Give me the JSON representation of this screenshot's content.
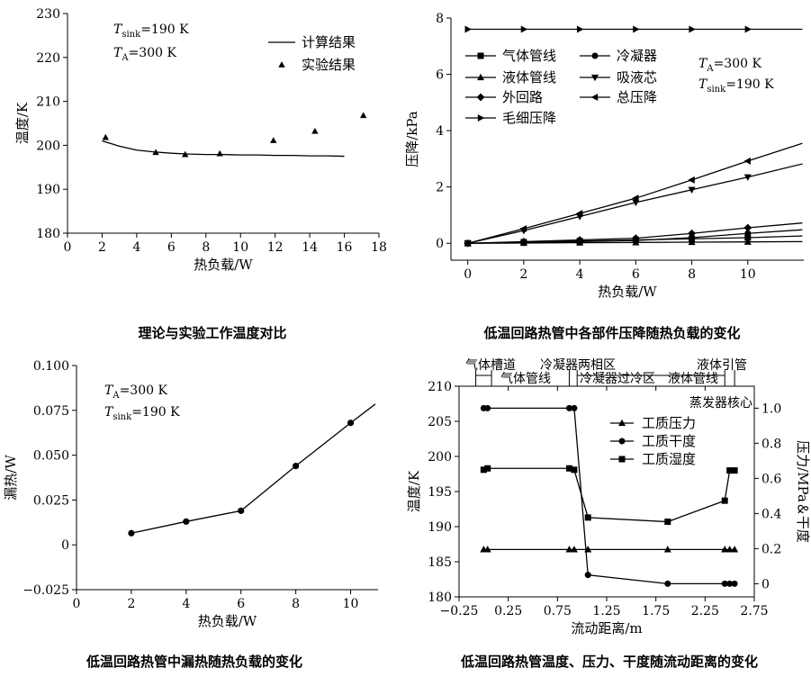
{
  "chart_data": [
    {
      "type": "scatter",
      "id": "c1",
      "caption": "理论与实验工作温度对比",
      "xlabel": "热负载/W",
      "ylabel": "温度/K",
      "xlim": [
        0,
        18
      ],
      "ylim": [
        180,
        230
      ],
      "xticks": [
        0,
        2,
        4,
        6,
        8,
        10,
        12,
        14,
        16,
        18
      ],
      "yticks": [
        180,
        190,
        200,
        210,
        220,
        230
      ],
      "annotations": [
        {
          "label": "T",
          "sub": "sink",
          "value": "=190 K"
        },
        {
          "label": "T",
          "sub": "A",
          "value": "=300 K"
        }
      ],
      "legend_position": "top-right",
      "series": [
        {
          "name": "计算结果",
          "kind": "line",
          "x": [
            2,
            3,
            4,
            5,
            6,
            7,
            8,
            9,
            10,
            11,
            12,
            13,
            14,
            15,
            16
          ],
          "y": [
            201.0,
            199.8,
            198.9,
            198.5,
            198.2,
            198.0,
            197.9,
            197.9,
            197.8,
            197.8,
            197.7,
            197.7,
            197.6,
            197.6,
            197.5
          ]
        },
        {
          "name": "实验结果",
          "kind": "triangle",
          "x": [
            2.2,
            5.1,
            6.8,
            8.8,
            11.9,
            14.3,
            17.1
          ],
          "y": [
            201.8,
            198.4,
            197.9,
            198.1,
            201.1,
            203.2,
            206.8
          ]
        }
      ]
    },
    {
      "type": "line",
      "id": "c2",
      "caption": "低温回路热管中各部件压降随热负载的变化",
      "xlabel": "热负载/W",
      "ylabel": "压降/kPa",
      "xlim": [
        -0.6,
        12
      ],
      "ylim": [
        -0.6,
        8
      ],
      "xticks": [
        0,
        2,
        4,
        6,
        8,
        10
      ],
      "yticks": [
        0,
        2,
        4,
        6,
        8
      ],
      "annotations": [
        {
          "label": "T",
          "sub": "A",
          "value": "=300 K"
        },
        {
          "label": "T",
          "sub": "sink",
          "value": "=190 K"
        }
      ],
      "legend_position": "top-left",
      "series": [
        {
          "name": "气体管线",
          "marker": "square",
          "x": [
            0,
            2,
            4,
            6,
            8,
            10
          ],
          "y": [
            0,
            0.04,
            0.08,
            0.12,
            0.16,
            0.2
          ],
          "extend": 0.26
        },
        {
          "name": "液体管线",
          "marker": "triangle-up",
          "x": [
            0,
            2,
            4,
            6,
            8,
            10
          ],
          "y": [
            0,
            0.01,
            0.02,
            0.03,
            0.04,
            0.05
          ],
          "extend": 0.06
        },
        {
          "name": "外回路",
          "marker": "diamond",
          "x": [
            0,
            2,
            4,
            6,
            8,
            10
          ],
          "y": [
            0,
            0.06,
            0.12,
            0.18,
            0.35,
            0.55
          ],
          "extend": 0.72
        },
        {
          "name": "冷凝器",
          "marker": "circle",
          "x": [
            0,
            2,
            4,
            6,
            8,
            10
          ],
          "y": [
            0,
            0.03,
            0.06,
            0.1,
            0.2,
            0.35
          ],
          "extend": 0.48
        },
        {
          "name": "吸液芯",
          "marker": "triangle-down",
          "x": [
            0,
            2,
            4,
            6,
            8,
            10
          ],
          "y": [
            0,
            0.45,
            0.95,
            1.45,
            1.9,
            2.35
          ],
          "extend": 2.82
        },
        {
          "name": "总压降",
          "marker": "triangle-left",
          "x": [
            0,
            2,
            4,
            6,
            8,
            10
          ],
          "y": [
            0,
            0.52,
            1.06,
            1.6,
            2.25,
            2.92
          ],
          "extend": 3.55
        },
        {
          "name": "毛细压降",
          "marker": "triangle-right",
          "x": [
            0,
            2,
            4,
            6,
            8,
            10
          ],
          "y": [
            7.6,
            7.6,
            7.6,
            7.6,
            7.6,
            7.6
          ],
          "extend": 7.6
        }
      ]
    },
    {
      "type": "line",
      "id": "c3",
      "caption": "低温回路热管中漏热随热负载的变化",
      "xlabel": "热负载/W",
      "ylabel": "漏热/W",
      "xlim": [
        0,
        11
      ],
      "ylim": [
        -0.025,
        0.1
      ],
      "xticks": [
        0,
        2,
        4,
        6,
        8,
        10
      ],
      "yticks": [
        -0.025,
        0,
        0.025,
        0.05,
        0.075,
        0.1
      ],
      "ytick_labels": [
        "−0.025",
        "0",
        "0.025",
        "0.050",
        "0.075",
        "0.100"
      ],
      "annotations": [
        {
          "label": "T",
          "sub": "A",
          "value": "=300 K"
        },
        {
          "label": "T",
          "sub": "sink",
          "value": "=190 K"
        }
      ],
      "series": [
        {
          "name": "",
          "marker": "circle",
          "x": [
            2,
            4,
            6,
            8,
            10
          ],
          "y": [
            0.0065,
            0.013,
            0.019,
            0.044,
            0.068
          ],
          "extend": 0.0785
        }
      ]
    },
    {
      "type": "line",
      "id": "c4",
      "caption": "低温回路热管温度、压力、干度随流动距离的变化",
      "xlabel": "流动距离/m",
      "ylabel": "温度/K",
      "y2label": "压力/MPa＆干度",
      "xlim": [
        -0.25,
        2.75
      ],
      "ylim": [
        180,
        210
      ],
      "y2lim": [
        -0.075,
        1.125
      ],
      "xticks": [
        -0.25,
        0.25,
        0.75,
        1.25,
        1.75,
        2.25,
        2.75
      ],
      "xtick_labels": [
        "−0.25",
        "0.25",
        "0.75",
        "1.25",
        "1.75",
        "2.25",
        "2.75"
      ],
      "yticks": [
        180,
        185,
        190,
        195,
        200,
        205,
        210
      ],
      "y2ticks": [
        0,
        0.2,
        0.4,
        0.6,
        0.8,
        1.0
      ],
      "y2tick_labels": [
        "0",
        "0.2",
        "0.4",
        "0.6",
        "0.8",
        "1.0"
      ],
      "regions_top": [
        "气体槽道",
        "冷凝器两相区",
        "液体引管"
      ],
      "regions_mid": [
        "气体管线",
        "冷凝器过冷区",
        "液体管线"
      ],
      "region_bottom": "蒸发器核心",
      "legend_position": "top-center",
      "series": [
        {
          "name": "工质压力",
          "axis": "right",
          "marker": "triangle-up",
          "x": [
            0.0,
            0.04,
            0.87,
            0.92,
            1.06,
            1.87,
            2.45,
            2.5,
            2.55
          ],
          "y": [
            0.195,
            0.195,
            0.195,
            0.195,
            0.195,
            0.195,
            0.195,
            0.195,
            0.195
          ]
        },
        {
          "name": "工质干度",
          "axis": "right",
          "marker": "circle",
          "x": [
            0.0,
            0.04,
            0.87,
            0.92,
            1.06,
            1.87,
            2.45,
            2.5,
            2.55
          ],
          "y": [
            1.0,
            1.0,
            1.0,
            1.0,
            0.05,
            0.0,
            0.0,
            0.0,
            0.0
          ]
        },
        {
          "name": "工质湿度",
          "axis": "left",
          "marker": "square",
          "x": [
            0.0,
            0.04,
            0.87,
            0.92,
            1.06,
            1.87,
            2.45,
            2.5,
            2.55
          ],
          "y": [
            198.1,
            198.3,
            198.3,
            198.1,
            191.3,
            190.7,
            193.7,
            198.0,
            198.0
          ]
        }
      ]
    }
  ]
}
